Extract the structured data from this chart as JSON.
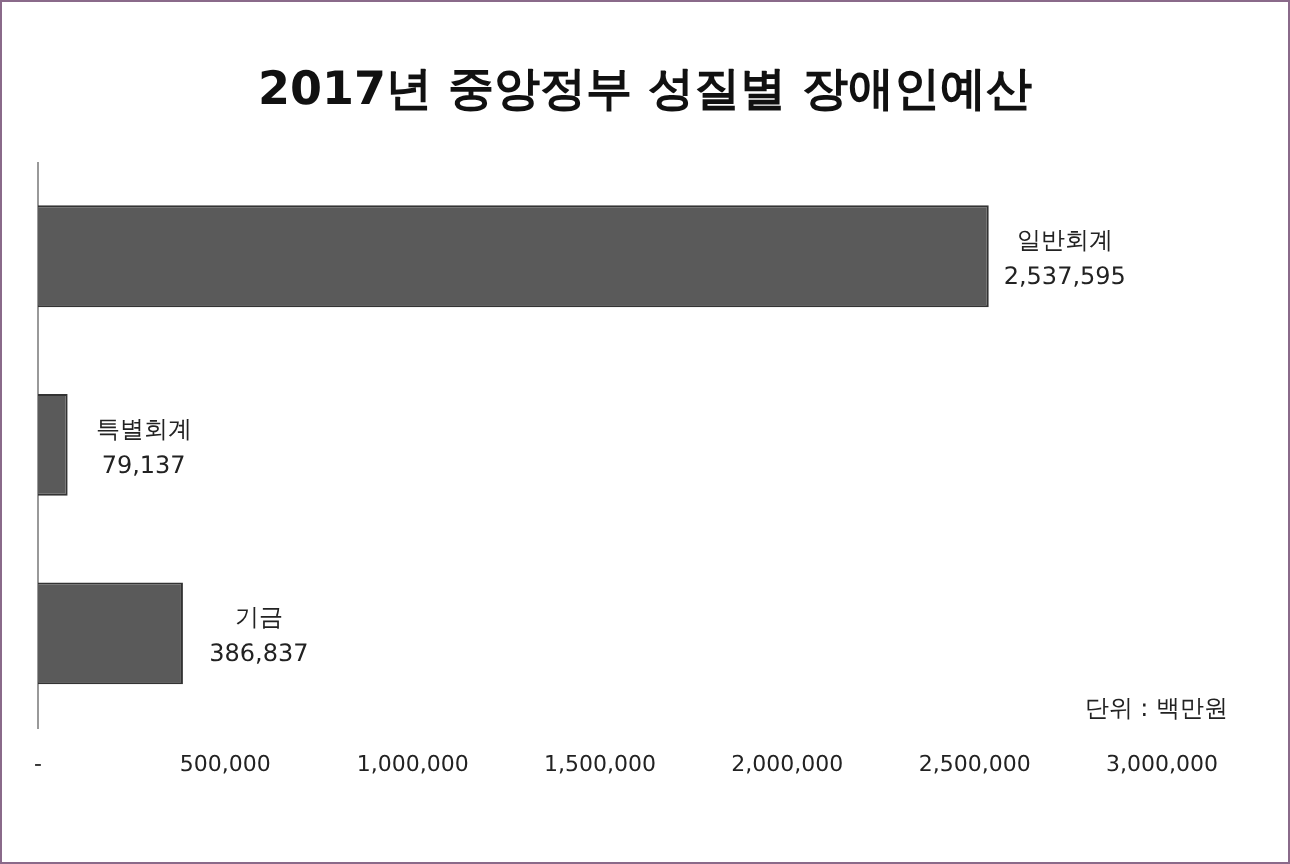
{
  "chart_data": {
    "type": "bar",
    "orientation": "horizontal",
    "title": "2017년 중앙정부 성질별 장애인예산",
    "categories": [
      "일반회계",
      "특별회계",
      "기금"
    ],
    "values": [
      2537595,
      79137,
      386837
    ],
    "value_labels": [
      "2,537,595",
      "79,137",
      "386,837"
    ],
    "color": "#5a5a5a",
    "xlim": [
      0,
      3000000
    ],
    "xticks": [
      {
        "value": 0,
        "label": "-"
      },
      {
        "value": 500000,
        "label": "500,000"
      },
      {
        "value": 1000000,
        "label": "1,000,000"
      },
      {
        "value": 1500000,
        "label": "1,500,000"
      },
      {
        "value": 2000000,
        "label": "2,000,000"
      },
      {
        "value": 2500000,
        "label": "2,500,000"
      },
      {
        "value": 3000000,
        "label": "3,000,000"
      }
    ],
    "tick_labels": "x",
    "grid": false,
    "legend": false,
    "annotations": [
      "단위 : 백만원"
    ]
  }
}
